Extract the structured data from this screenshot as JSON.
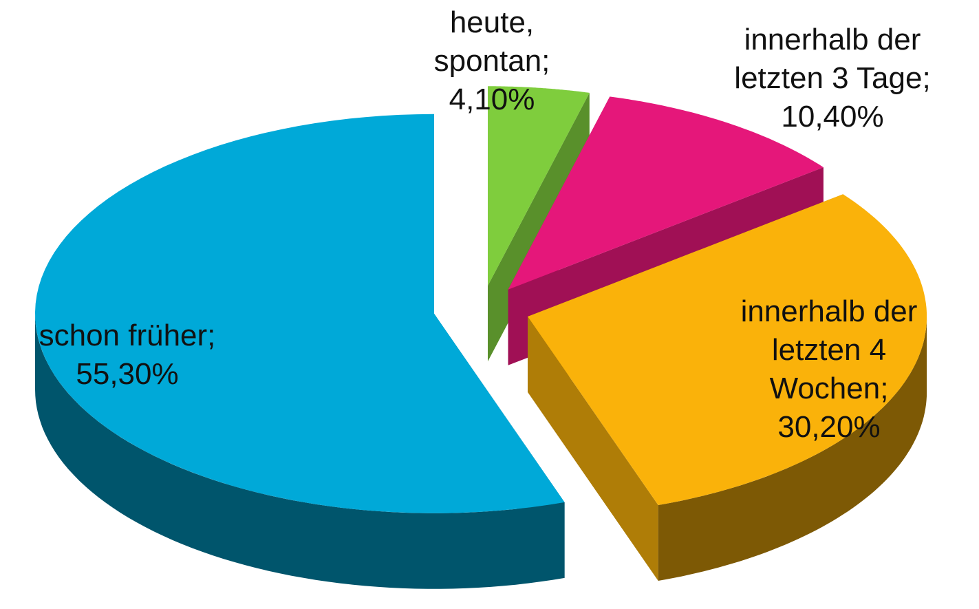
{
  "chart_data": {
    "type": "pie",
    "categories": [
      "heute, spontan;",
      "innerhalb der letzten 3 Tage;",
      "innerhalb der letzten 4 Wochen;",
      "schon früher;"
    ],
    "values": [
      4.1,
      10.4,
      30.2,
      55.3
    ],
    "value_labels": [
      "4,10%",
      "10,40%",
      "30,20%",
      "55,30%"
    ],
    "colors": [
      "#7fcd3d",
      "#e5177a",
      "#fab20a",
      "#00a9d8"
    ]
  }
}
